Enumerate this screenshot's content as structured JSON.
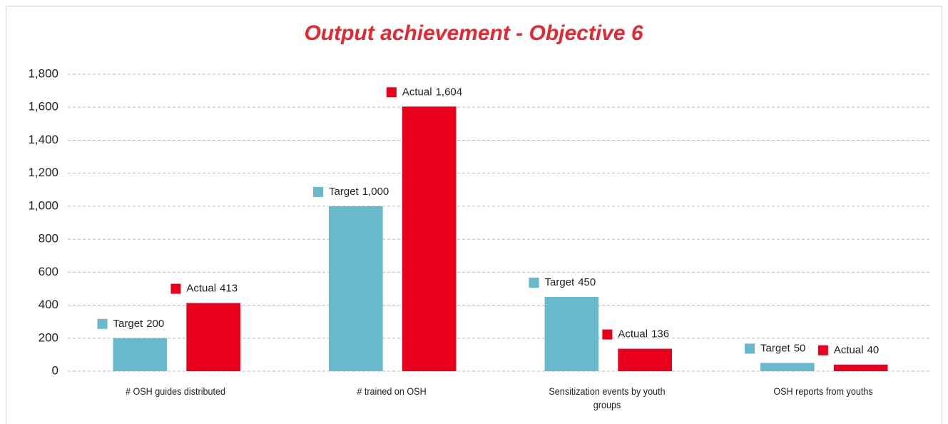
{
  "chart_data": {
    "type": "bar",
    "title": "Output achievement - Objective 6",
    "categories": [
      "# OSH guides distributed",
      "# trained on OSH",
      "Sensitization events by youth groups",
      "OSH reports from youths"
    ],
    "series": [
      {
        "name": "Target",
        "color": "#67b9cb",
        "values": [
          200,
          1000,
          450,
          50
        ],
        "value_labels": [
          "200",
          "1,000",
          "450",
          "50"
        ]
      },
      {
        "name": "Actual",
        "color": "#e8001c",
        "values": [
          413,
          1604,
          136,
          40
        ],
        "value_labels": [
          "413",
          "1,604",
          "136",
          "40"
        ]
      }
    ],
    "ylim": [
      0,
      1800
    ],
    "yticks": [
      0,
      200,
      400,
      600,
      800,
      {
        "value": 1000,
        "label": "1,000"
      },
      {
        "value": 1200,
        "label": "1,200"
      },
      {
        "value": 1400,
        "label": "1,400"
      },
      {
        "value": 1600,
        "label": "1,600"
      },
      {
        "value": 1800,
        "label": "1,800"
      }
    ],
    "grid": true
  }
}
